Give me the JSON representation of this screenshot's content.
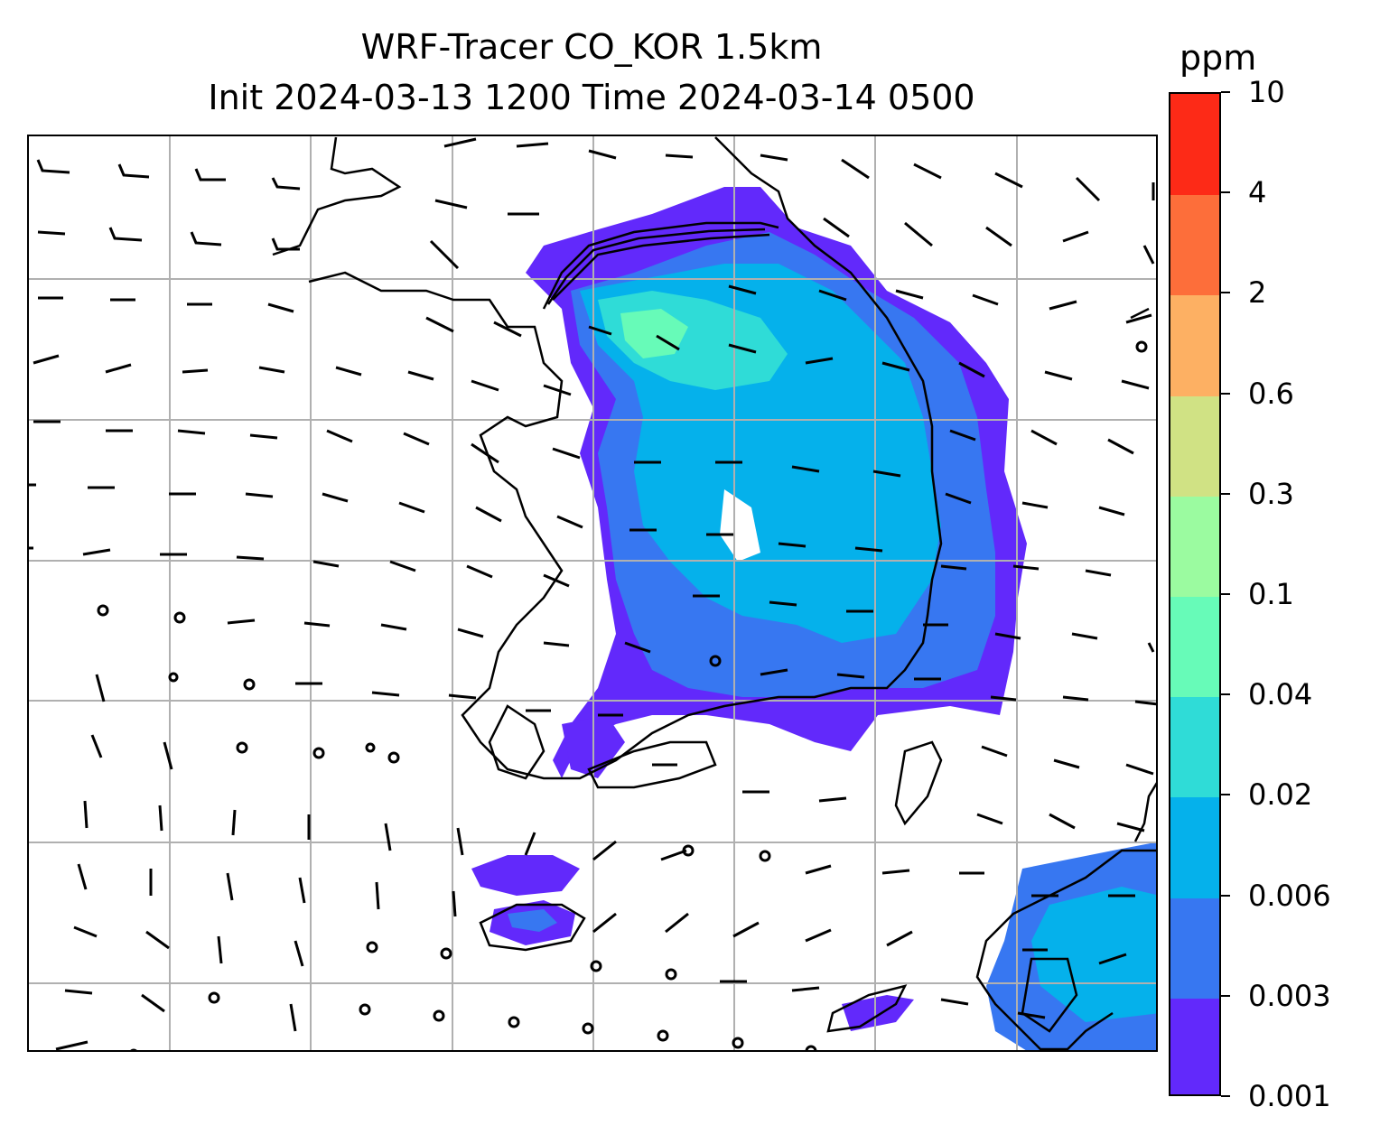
{
  "title": {
    "line1": "WRF-Tracer CO_KOR 1.5km",
    "line2": "Init 2024-03-13 1200 Time 2024-03-14 0500"
  },
  "colorbar": {
    "unit": "ppm",
    "levels": [
      "0.001",
      "0.003",
      "0.006",
      "0.02",
      "0.04",
      "0.1",
      "0.3",
      "0.6",
      "2",
      "4",
      "10"
    ],
    "colors": [
      "#6229fb",
      "#3777f1",
      "#05b1eb",
      "#2fdcd7",
      "#67fbb8",
      "#9bfba0",
      "#d0e284",
      "#fdb063",
      "#fd6e3a",
      "#fd2a17"
    ]
  },
  "map": {
    "gridlines": true,
    "coastline_color": "#000000",
    "grid_color": "#b0b0b0",
    "wind_barbs": true
  }
}
